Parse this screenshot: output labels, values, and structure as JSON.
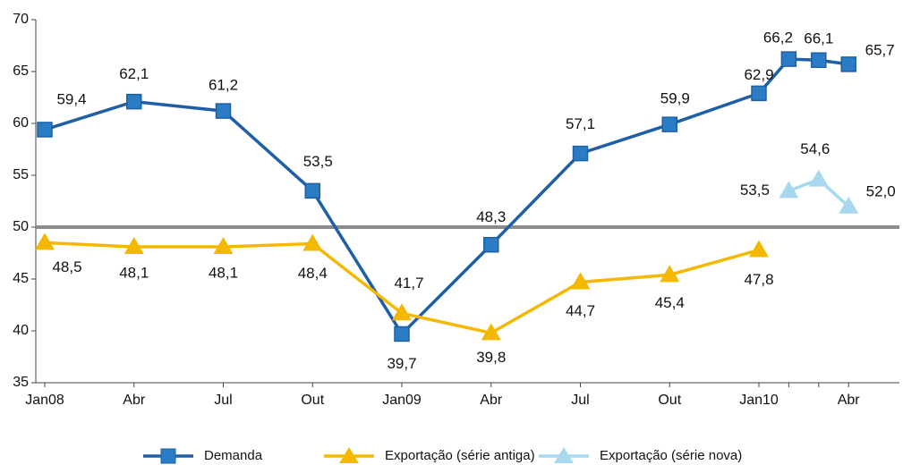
{
  "chart_data": {
    "type": "line",
    "categories": [
      "Jan08",
      "Abr",
      "Jul",
      "Out",
      "Jan09",
      "Abr",
      "Jul",
      "Out",
      "Jan10",
      null,
      null,
      "Abr"
    ],
    "series": [
      {
        "name": "Demanda",
        "color": "#1f5fa6",
        "marker": "square",
        "values": [
          59.4,
          62.1,
          61.2,
          53.5,
          39.7,
          48.3,
          57.1,
          59.9,
          62.9,
          66.2,
          66.1,
          65.7
        ],
        "value_labels": [
          "59,4",
          "62,1",
          "61,2",
          "53,5",
          "39,7",
          "48,3",
          "57,1",
          "59,9",
          "62,9",
          "66,2",
          "66,1",
          "65,7"
        ]
      },
      {
        "name": "Exportação (série antiga)",
        "color": "#f5b800",
        "marker": "triangle",
        "values": [
          48.5,
          48.1,
          48.1,
          48.4,
          41.7,
          39.8,
          44.7,
          45.4,
          47.8,
          null,
          null,
          null
        ],
        "value_labels": [
          "48,5",
          "48,1",
          "48,1",
          "48,4",
          "41,7",
          "39,8",
          "44,7",
          "45,4",
          "47,8",
          null,
          null,
          null
        ]
      },
      {
        "name": "Exportação (série nova)",
        "color": "#a8d8f0",
        "marker": "triangle",
        "values": [
          null,
          null,
          null,
          null,
          null,
          null,
          null,
          null,
          null,
          53.5,
          54.6,
          52.0
        ],
        "value_labels": [
          null,
          null,
          null,
          null,
          null,
          null,
          null,
          null,
          null,
          "53,5",
          "54,6",
          "52,0"
        ]
      }
    ],
    "ylim": [
      35,
      70
    ],
    "yticks": [
      35,
      40,
      45,
      50,
      55,
      60,
      65,
      70
    ],
    "reference_line": 50,
    "legend": "bottom"
  }
}
